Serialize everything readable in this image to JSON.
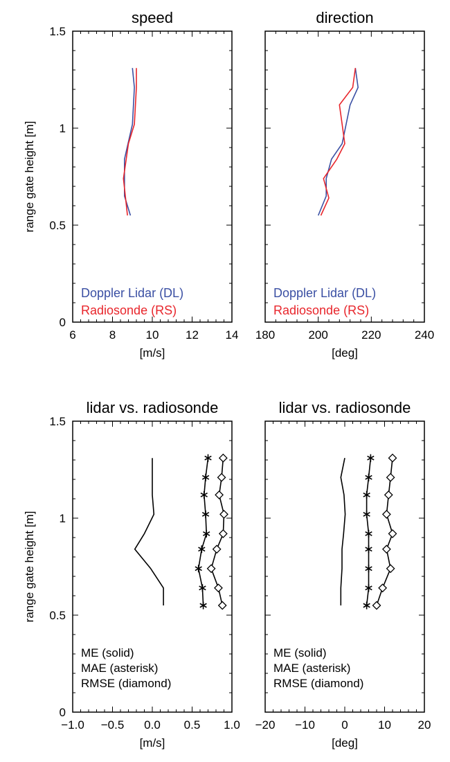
{
  "chart_data": [
    {
      "type": "line",
      "title": "speed",
      "xlabel": "[m/s]",
      "ylabel": "range gate height [m]",
      "xlim": [
        6,
        14
      ],
      "ylim": [
        0,
        1.5
      ],
      "xticks": [
        "6",
        "8",
        "10",
        "12",
        "14"
      ],
      "yticks": [
        "0",
        "0.5",
        "1",
        "1.5"
      ],
      "legend_position": "bottom-left",
      "series": [
        {
          "name": "Doppler Lidar (DL)",
          "color": "#3a4fa3",
          "marker": "none",
          "x": [
            8.9,
            8.6,
            8.6,
            9.0,
            9.1,
            9.0
          ],
          "y": [
            0.55,
            0.65,
            0.84,
            1.02,
            1.21,
            1.31
          ]
        },
        {
          "name": "Radiosonde (RS)",
          "color": "#e8252b",
          "marker": "none",
          "x": [
            8.75,
            8.55,
            8.8,
            9.1,
            9.2,
            9.2
          ],
          "y": [
            0.55,
            0.74,
            0.92,
            1.02,
            1.21,
            1.31
          ]
        }
      ]
    },
    {
      "type": "line",
      "title": "direction",
      "xlabel": "[deg]",
      "ylabel": "",
      "xlim": [
        180,
        240
      ],
      "ylim": [
        0,
        1.5
      ],
      "xticks": [
        "180",
        "200",
        "220",
        "240"
      ],
      "yticks": [],
      "legend_position": "bottom-left",
      "series": [
        {
          "name": "Doppler Lidar (DL)",
          "color": "#3a4fa3",
          "marker": "none",
          "x": [
            200,
            203,
            203,
            205,
            209,
            212,
            215,
            214
          ],
          "y": [
            0.55,
            0.65,
            0.74,
            0.84,
            0.92,
            1.12,
            1.21,
            1.31
          ]
        },
        {
          "name": "Radiosonde (RS)",
          "color": "#e8252b",
          "marker": "none",
          "x": [
            201,
            204,
            202,
            207,
            210,
            209,
            208,
            213,
            214
          ],
          "y": [
            0.55,
            0.64,
            0.74,
            0.84,
            0.92,
            1.02,
            1.12,
            1.21,
            1.31
          ]
        }
      ]
    },
    {
      "type": "line",
      "title": "lidar vs. radiosonde",
      "xlabel": "[m/s]",
      "ylabel": "range gate height [m]",
      "xlim": [
        -1.0,
        1.0
      ],
      "ylim": [
        0,
        1.5
      ],
      "xticks": [
        "−1.0",
        "−0.5",
        "0.0",
        "0.5",
        "1.0"
      ],
      "yticks": [
        "0",
        "0.5",
        "1",
        "1.5"
      ],
      "legend_position": "bottom-left",
      "legend_lines": [
        "ME (solid)",
        "MAE (asterisk)",
        "RMSE (diamond)"
      ],
      "series": [
        {
          "name": "ME (solid)",
          "color": "#000000",
          "marker": "none",
          "x": [
            0.14,
            0.14,
            -0.02,
            -0.22,
            -0.1,
            0.02,
            0.0,
            0.0,
            0.0
          ],
          "y": [
            0.55,
            0.64,
            0.74,
            0.84,
            0.92,
            1.02,
            1.12,
            1.21,
            1.31
          ]
        },
        {
          "name": "MAE (asterisk)",
          "color": "#000000",
          "marker": "asterisk",
          "x": [
            0.64,
            0.63,
            0.58,
            0.62,
            0.68,
            0.67,
            0.65,
            0.67,
            0.7
          ],
          "y": [
            0.55,
            0.64,
            0.74,
            0.84,
            0.92,
            1.02,
            1.12,
            1.21,
            1.31
          ]
        },
        {
          "name": "RMSE (diamond)",
          "color": "#000000",
          "marker": "diamond",
          "x": [
            0.88,
            0.83,
            0.74,
            0.81,
            0.89,
            0.9,
            0.84,
            0.87,
            0.89
          ],
          "y": [
            0.55,
            0.64,
            0.74,
            0.84,
            0.92,
            1.02,
            1.12,
            1.21,
            1.31
          ]
        }
      ]
    },
    {
      "type": "line",
      "title": "lidar vs. radiosonde",
      "xlabel": "[deg]",
      "ylabel": "",
      "xlim": [
        -20,
        20
      ],
      "ylim": [
        0,
        1.5
      ],
      "xticks": [
        "−20",
        "−10",
        "0",
        "10",
        "20"
      ],
      "yticks": [],
      "legend_position": "bottom-left",
      "legend_lines": [
        "ME (solid)",
        "MAE (asterisk)",
        "RMSE (diamond)"
      ],
      "series": [
        {
          "name": "ME (solid)",
          "color": "#000000",
          "marker": "none",
          "x": [
            -1.0,
            -1.0,
            -0.7,
            -0.7,
            -0.3,
            0.1,
            -0.2,
            -1.0,
            0.0
          ],
          "y": [
            0.55,
            0.64,
            0.74,
            0.84,
            0.92,
            1.02,
            1.12,
            1.21,
            1.31
          ]
        },
        {
          "name": "MAE (asterisk)",
          "color": "#000000",
          "marker": "asterisk",
          "x": [
            5.5,
            6.0,
            6.0,
            6.0,
            6.0,
            5.5,
            5.5,
            6.0,
            6.5
          ],
          "y": [
            0.55,
            0.64,
            0.74,
            0.84,
            0.92,
            1.02,
            1.12,
            1.21,
            1.31
          ]
        },
        {
          "name": "RMSE (diamond)",
          "color": "#000000",
          "marker": "diamond",
          "x": [
            8.0,
            9.5,
            11.5,
            10.5,
            12.0,
            10.5,
            11.0,
            11.5,
            12.0
          ],
          "y": [
            0.55,
            0.64,
            0.74,
            0.84,
            0.92,
            1.02,
            1.12,
            1.21,
            1.31
          ]
        }
      ]
    }
  ]
}
